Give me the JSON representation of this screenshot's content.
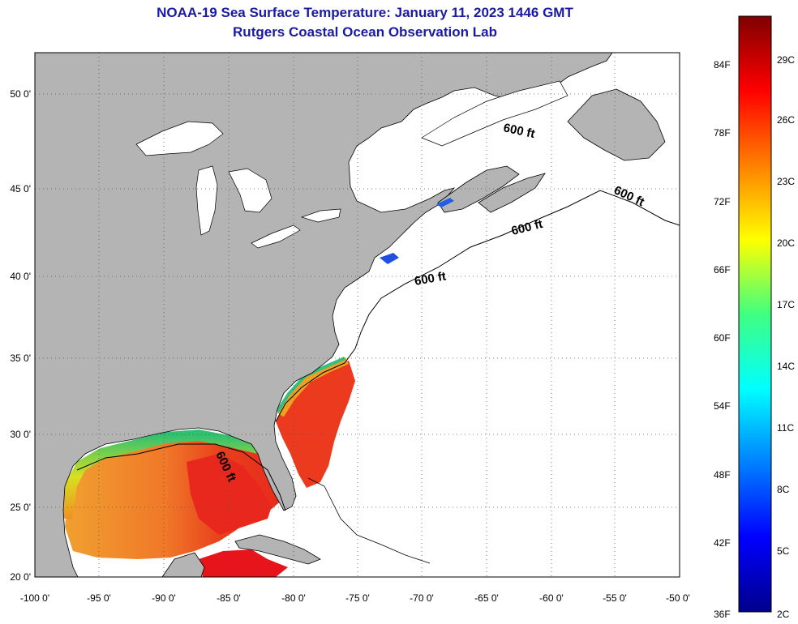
{
  "title": "NOAA-19 Sea Surface Temperature:  January 11, 2023 1446 GMT",
  "subtitle": "Rutgers Coastal Ocean Observation Lab",
  "map": {
    "lon_ticks": [
      "-100 0'",
      "-95 0'",
      "-90 0'",
      "-85 0'",
      "-80 0'",
      "-75 0'",
      "-70 0'",
      "-65 0'",
      "-60 0'",
      "-55 0'",
      "-50 0'"
    ],
    "lat_ticks": [
      "50 0'",
      "45 0'",
      "40 0'",
      "35 0'",
      "30 0'",
      "25 0'",
      "20 0'"
    ],
    "contour_labels": [
      "600 ft",
      "600 ft",
      "600 ft",
      "600 ft",
      "600 ft"
    ],
    "colors": {
      "land": "#b4b4b4",
      "ocean_nodata": "#ffffff",
      "warm_gulf": "#f07828",
      "hot": "#e8281c"
    }
  },
  "colorbar": {
    "f_labels": [
      "84F",
      "78F",
      "72F",
      "66F",
      "60F",
      "54F",
      "48F",
      "42F",
      "36F"
    ],
    "c_labels": [
      "29C",
      "26C",
      "23C",
      "20C",
      "17C",
      "14C",
      "11C",
      "8C",
      "5C",
      "2C"
    ],
    "colors": [
      "#00008b",
      "#0000ff",
      "#0080ff",
      "#00ffff",
      "#40ff80",
      "#ffff00",
      "#ff8000",
      "#ff0000",
      "#800000"
    ]
  }
}
